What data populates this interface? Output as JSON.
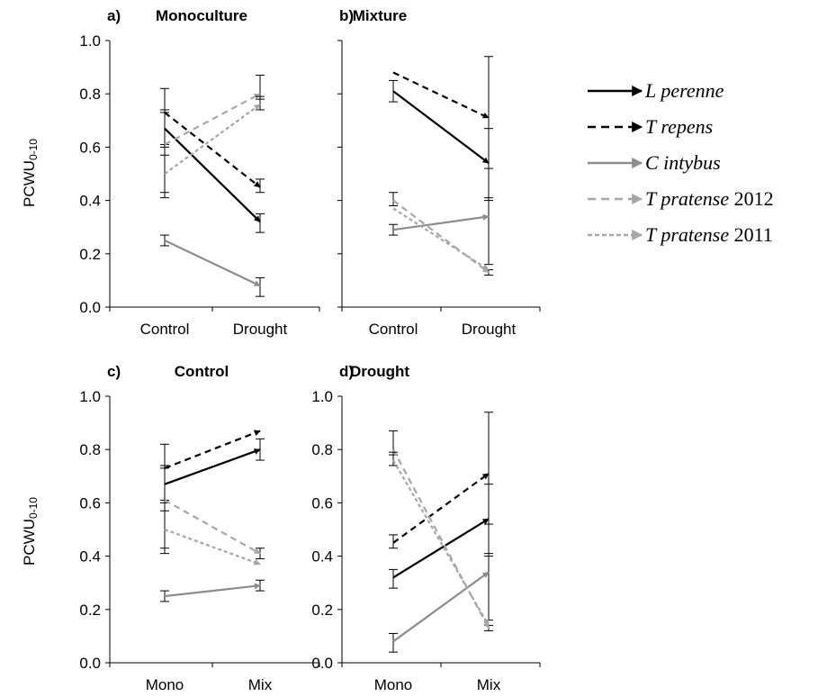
{
  "colors": {
    "black": "#000000",
    "gray": "#8c8c8c",
    "lightgray": "#a6a6a6"
  },
  "ylabel": "PCWU",
  "ylabel_sub": "0-10",
  "legend": [
    {
      "name": "L perenne",
      "year": "",
      "color": "#000000",
      "dash": "solid"
    },
    {
      "name": "T repens",
      "year": "",
      "color": "#000000",
      "dash": "dashed"
    },
    {
      "name": "C intybus",
      "year": "",
      "color": "#8c8c8c",
      "dash": "solid"
    },
    {
      "name": "T pratense",
      "year": "2012",
      "color": "#a6a6a6",
      "dash": "dashed"
    },
    {
      "name": "T pratense",
      "year": "2011",
      "color": "#a6a6a6",
      "dash": "dotted"
    }
  ],
  "chart_data": [
    {
      "type": "line",
      "panel": "a)",
      "title": "Monoculture",
      "categories": [
        "Control",
        "Drought"
      ],
      "ylim": [
        0,
        1
      ],
      "yticks": [
        "0.0",
        "0.2",
        "0.4",
        "0.6",
        "0.8",
        "1.0"
      ],
      "series": [
        {
          "name": "L perenne",
          "values": [
            0.67,
            0.32
          ],
          "err_low": [
            0.07,
            0.04
          ],
          "err_high": [
            0.07,
            0.03
          ]
        },
        {
          "name": "T repens",
          "values": [
            0.73,
            0.45
          ],
          "err_low": [
            0.0,
            0.02
          ],
          "err_high": [
            0.09,
            0.03
          ]
        },
        {
          "name": "C intybus",
          "values": [
            0.25,
            0.08
          ],
          "err_low": [
            0.02,
            0.04
          ],
          "err_high": [
            0.02,
            0.03
          ]
        },
        {
          "name": "T pratense 2012",
          "values": [
            0.61,
            0.8
          ],
          "err_low": [
            0.2,
            0.02
          ],
          "err_high": [
            0.0,
            0.07
          ]
        },
        {
          "name": "T pratense 2011",
          "values": [
            0.5,
            0.76
          ],
          "err_low": [
            0.07,
            0.02
          ],
          "err_high": [
            0.07,
            0.03
          ]
        }
      ]
    },
    {
      "type": "line",
      "panel": "b)",
      "title": "Mixture",
      "categories": [
        "Control",
        "Drought"
      ],
      "ylim": [
        0,
        1
      ],
      "yticks": [],
      "series": [
        {
          "name": "L perenne",
          "values": [
            0.81,
            0.54
          ],
          "err_low": [
            0.04,
            0.14
          ],
          "err_high": [
            0.04,
            0.13
          ]
        },
        {
          "name": "T repens",
          "values": [
            0.88,
            0.71
          ],
          "err_low": [
            0.0,
            0.3
          ],
          "err_high": [
            0.0,
            0.23
          ]
        },
        {
          "name": "C intybus",
          "values": [
            0.29,
            0.34
          ],
          "err_low": [
            0.02,
            0.18
          ],
          "err_high": [
            0.02,
            0.18
          ]
        },
        {
          "name": "T pratense 2012",
          "values": [
            0.4,
            0.13
          ],
          "err_low": [
            0.02,
            0.01
          ],
          "err_high": [
            0.03,
            0.01
          ]
        },
        {
          "name": "T pratense 2011",
          "values": [
            0.37,
            0.14
          ],
          "err_low": [
            0.0,
            0.0
          ],
          "err_high": [
            0.0,
            0.0
          ]
        }
      ]
    },
    {
      "type": "line",
      "panel": "c)",
      "title": "Control",
      "categories": [
        "Mono",
        "Mix"
      ],
      "ylim": [
        0,
        1
      ],
      "yticks": [
        "0.0",
        "0.2",
        "0.4",
        "0.6",
        "0.8",
        "1.0"
      ],
      "series": [
        {
          "name": "L perenne",
          "values": [
            0.67,
            0.8
          ],
          "err_low": [
            0.07,
            0.04
          ],
          "err_high": [
            0.07,
            0.04
          ]
        },
        {
          "name": "T repens",
          "values": [
            0.73,
            0.87
          ],
          "err_low": [
            0.0,
            0.0
          ],
          "err_high": [
            0.09,
            0.0
          ]
        },
        {
          "name": "C intybus",
          "values": [
            0.25,
            0.29
          ],
          "err_low": [
            0.02,
            0.02
          ],
          "err_high": [
            0.02,
            0.02
          ]
        },
        {
          "name": "T pratense 2012",
          "values": [
            0.61,
            0.41
          ],
          "err_low": [
            0.2,
            0.02
          ],
          "err_high": [
            0.0,
            0.02
          ]
        },
        {
          "name": "T pratense 2011",
          "values": [
            0.5,
            0.37
          ],
          "err_low": [
            0.07,
            0.0
          ],
          "err_high": [
            0.07,
            0.0
          ]
        }
      ]
    },
    {
      "type": "line",
      "panel": "d)",
      "title": "Drought",
      "categories": [
        "Mono",
        "Mix"
      ],
      "ylim": [
        0,
        1
      ],
      "yticks": [
        "0.0",
        "0.2",
        "0.4",
        "0.6",
        "0.8",
        "1.0"
      ],
      "series": [
        {
          "name": "L perenne",
          "values": [
            0.32,
            0.54
          ],
          "err_low": [
            0.04,
            0.14
          ],
          "err_high": [
            0.03,
            0.13
          ]
        },
        {
          "name": "T repens",
          "values": [
            0.45,
            0.71
          ],
          "err_low": [
            0.02,
            0.3
          ],
          "err_high": [
            0.03,
            0.23
          ]
        },
        {
          "name": "C intybus",
          "values": [
            0.08,
            0.34
          ],
          "err_low": [
            0.04,
            0.18
          ],
          "err_high": [
            0.03,
            0.18
          ]
        },
        {
          "name": "T pratense 2012",
          "values": [
            0.8,
            0.13
          ],
          "err_low": [
            0.02,
            0.01
          ],
          "err_high": [
            0.07,
            0.01
          ]
        },
        {
          "name": "T pratense 2011",
          "values": [
            0.76,
            0.14
          ],
          "err_low": [
            0.02,
            0.0
          ],
          "err_high": [
            0.03,
            0.0
          ]
        }
      ]
    }
  ]
}
